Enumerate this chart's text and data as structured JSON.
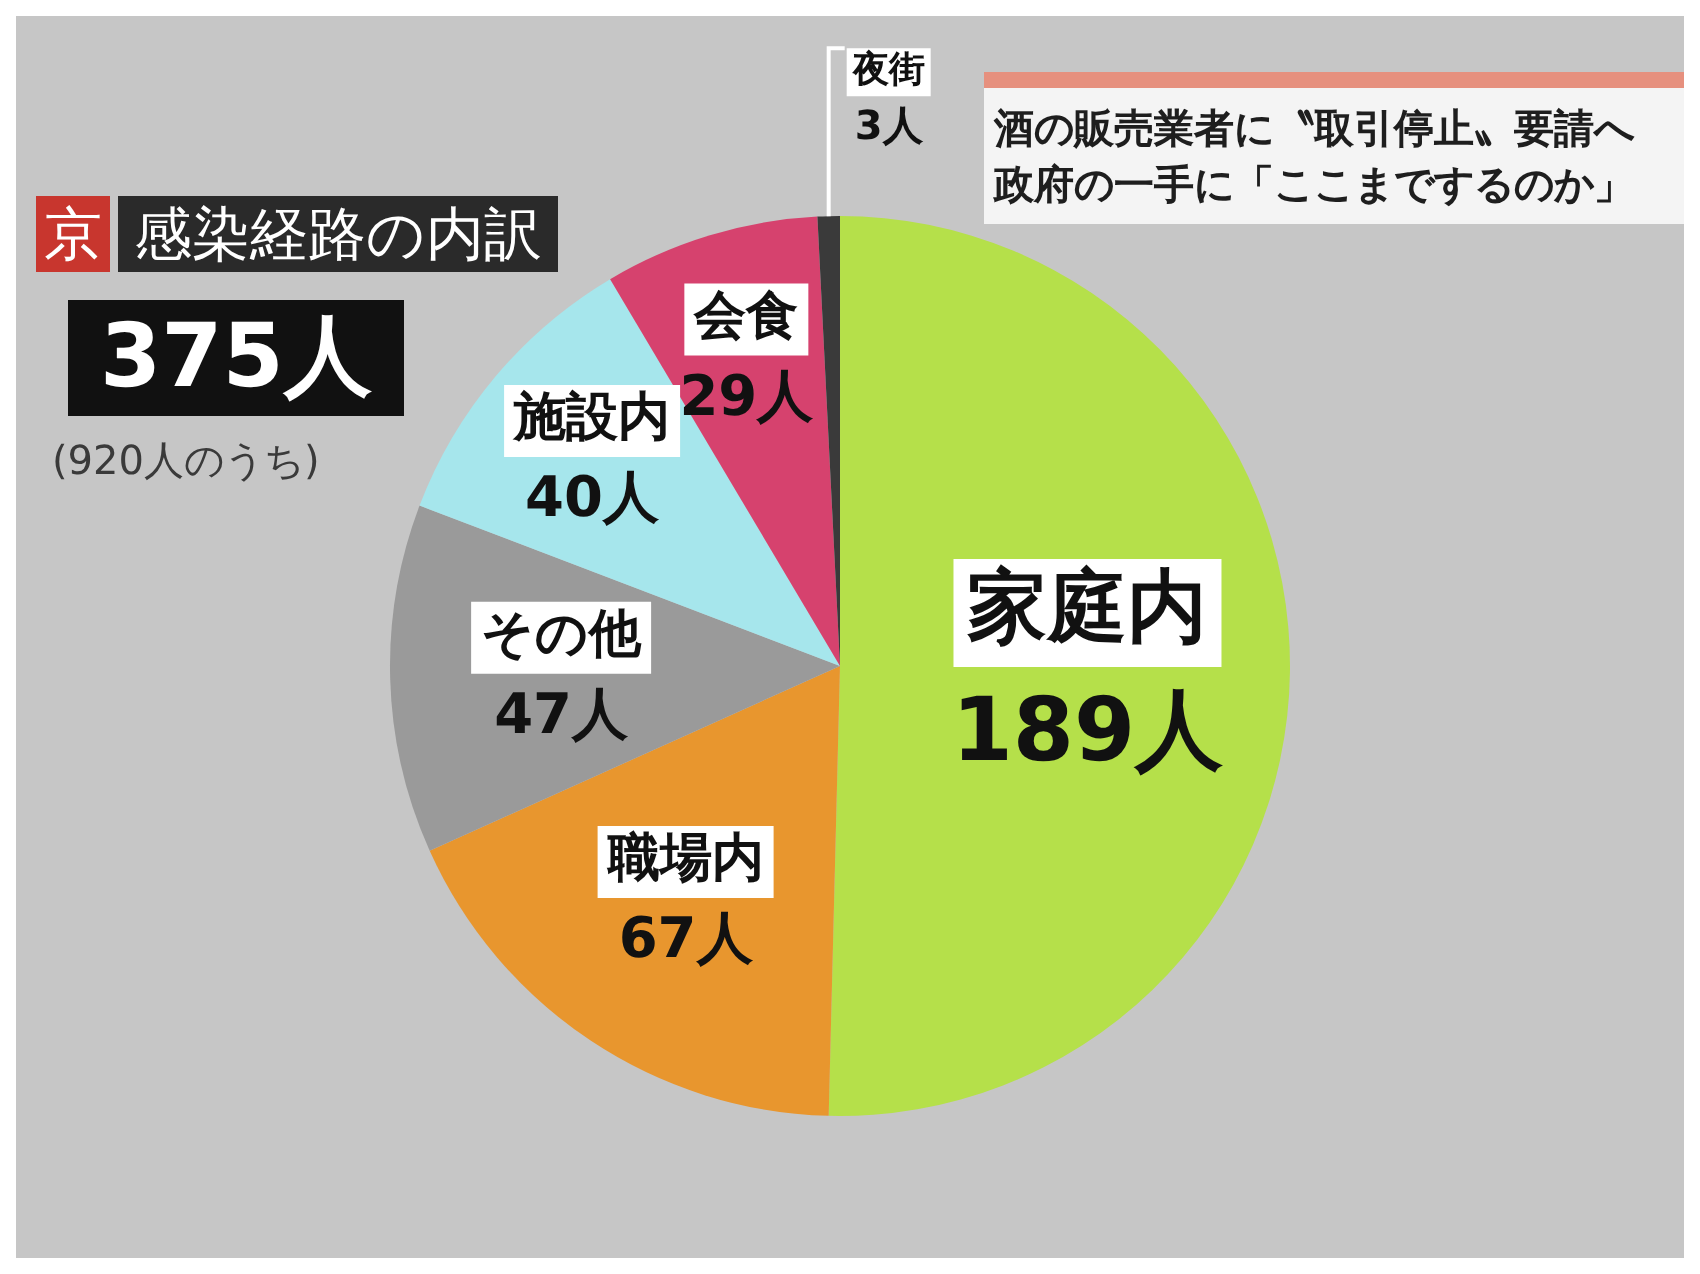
{
  "chart_data": {
    "type": "pie",
    "title": "京 感染経路の内訳",
    "subtitle": "375人",
    "annotations": [
      "(920人のうち)",
      "酒の販売業者に〝取引停止〟要請へ",
      "政府の一手に「ここまでするのか」"
    ],
    "categories": [
      "家庭内",
      "職場内",
      "その他",
      "施設内",
      "会食",
      "夜街"
    ],
    "values": [
      189,
      67,
      47,
      40,
      29,
      3
    ],
    "colors": [
      "#b5e04a",
      "#e8962e",
      "#9a9a9a",
      "#a6e6ec",
      "#d6426e",
      "#3a3a3a"
    ],
    "value_labels": [
      "189人",
      "67人",
      "47人",
      "40人",
      "29人",
      "3人"
    ]
  }
}
